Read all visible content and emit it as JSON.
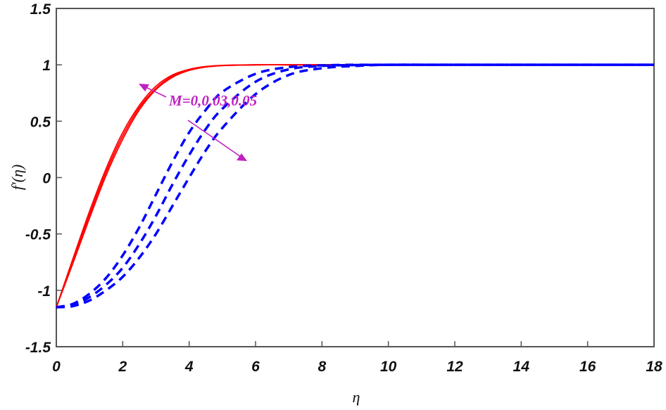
{
  "chart_data": {
    "type": "line",
    "title": "",
    "xlabel": "η",
    "ylabel": "f'(η)",
    "xlim": [
      0,
      18
    ],
    "ylim": [
      -1.5,
      1.5
    ],
    "xticks": [
      "0",
      "2",
      "4",
      "6",
      "8",
      "10",
      "12",
      "14",
      "16",
      "18"
    ],
    "yticks": [
      "1.5",
      "1",
      "0.5",
      "0",
      "-0.5",
      "-1",
      "-1.5"
    ],
    "grid": false,
    "legend": null,
    "annotation": {
      "text": "M=0,0.03,0.05",
      "color": "#c020c0"
    },
    "x": [
      0,
      0.5,
      1,
      1.5,
      2,
      2.5,
      3,
      3.5,
      4,
      4.5,
      5,
      6,
      7,
      8,
      9,
      10,
      12,
      14,
      16,
      18
    ],
    "series": [
      {
        "name": "solid M=0",
        "style": "solid",
        "color": "#ff0000",
        "values": [
          -1.15,
          -0.72,
          -0.3,
          0.08,
          0.4,
          0.64,
          0.81,
          0.91,
          0.96,
          0.985,
          0.995,
          1,
          1,
          1,
          1,
          1,
          1,
          1,
          1,
          1
        ]
      },
      {
        "name": "solid M=0.03",
        "style": "solid",
        "color": "#ff0000",
        "values": [
          -1.15,
          -0.74,
          -0.33,
          0.05,
          0.37,
          0.62,
          0.79,
          0.9,
          0.955,
          0.983,
          0.994,
          1,
          1,
          1,
          1,
          1,
          1,
          1,
          1,
          1
        ]
      },
      {
        "name": "solid M=0.05",
        "style": "solid",
        "color": "#ff0000",
        "values": [
          -1.15,
          -0.76,
          -0.36,
          0.02,
          0.34,
          0.6,
          0.78,
          0.89,
          0.95,
          0.98,
          0.993,
          1,
          1,
          1,
          1,
          1,
          1,
          1,
          1,
          1
        ]
      },
      {
        "name": "dashed M=0",
        "style": "dashed",
        "color": "#0000ff",
        "values": [
          -1.15,
          -1.12,
          -1.03,
          -0.89,
          -0.69,
          -0.44,
          -0.15,
          0.14,
          0.4,
          0.6,
          0.76,
          0.92,
          0.98,
          0.995,
          1,
          1,
          1,
          1,
          1,
          1
        ]
      },
      {
        "name": "dashed M=0.03",
        "style": "dashed",
        "color": "#0000ff",
        "values": [
          -1.15,
          -1.13,
          -1.06,
          -0.95,
          -0.8,
          -0.59,
          -0.34,
          -0.06,
          0.2,
          0.43,
          0.61,
          0.85,
          0.96,
          0.99,
          0.998,
          1,
          1,
          1,
          1,
          1
        ]
      },
      {
        "name": "dashed M=0.05",
        "style": "dashed",
        "color": "#0000ff",
        "values": [
          -1.15,
          -1.14,
          -1.09,
          -1.0,
          -0.88,
          -0.71,
          -0.5,
          -0.25,
          0.0,
          0.24,
          0.44,
          0.74,
          0.91,
          0.97,
          0.99,
          1,
          1,
          1,
          1,
          1
        ]
      }
    ]
  }
}
